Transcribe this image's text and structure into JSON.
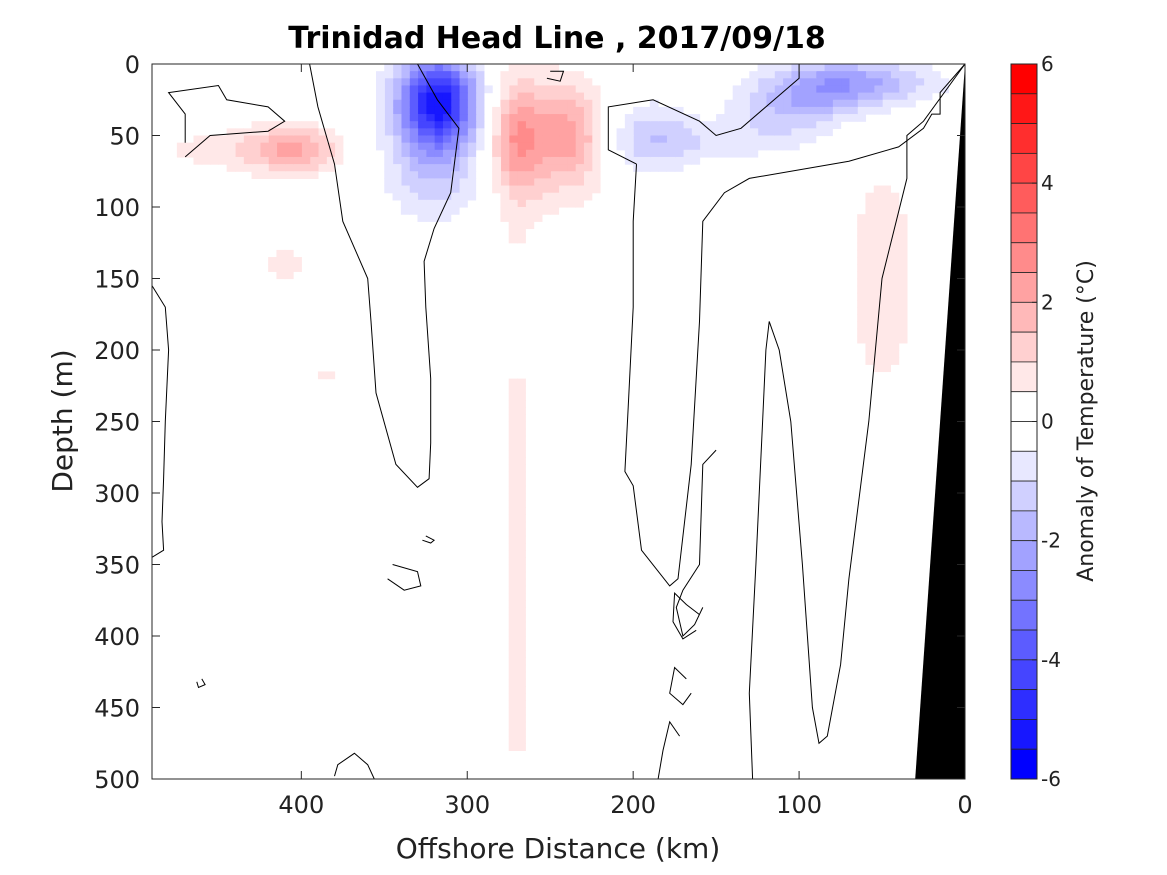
{
  "chart_data": {
    "type": "heatmap",
    "subtype": "filled-contour",
    "title": "Trinidad Head Line , 2017/09/18",
    "xlabel": "Offshore Distance (km)",
    "ylabel": "Depth (m)",
    "xlim": [
      490,
      0
    ],
    "ylim": [
      0,
      500
    ],
    "x_reversed": true,
    "y_reversed": true,
    "x_ticks": [
      "400",
      "300",
      "200",
      "100",
      "0"
    ],
    "x_tick_values": [
      400,
      300,
      200,
      100,
      0
    ],
    "y_ticks": [
      "0",
      "50",
      "100",
      "150",
      "200",
      "250",
      "300",
      "350",
      "400",
      "450",
      "500"
    ],
    "y_tick_values": [
      0,
      50,
      100,
      150,
      200,
      250,
      300,
      350,
      400,
      450,
      500
    ],
    "colorbar": {
      "label": "Anomaly of Temperature (°C)",
      "range": [
        -6,
        6
      ],
      "ticks": [
        "6",
        "4",
        "2",
        "0",
        "-2",
        "-4",
        "-6"
      ],
      "tick_values": [
        6,
        4,
        2,
        0,
        -2,
        -4,
        -6
      ],
      "level_step": 0.5,
      "colors": {
        "warm": [
          "#ffe8e8",
          "#ffd0d0",
          "#ffb9b9",
          "#ffa2a2",
          "#ff8b8b",
          "#ff7373",
          "#ff5c5c",
          "#ff4545",
          "#ff2e2e",
          "#ff1717",
          "#ff0000"
        ],
        "cold": [
          "#e8e8ff",
          "#d0d0ff",
          "#b9b9ff",
          "#a2a2ff",
          "#8b8bff",
          "#7373ff",
          "#5c5cff",
          "#4545ff",
          "#2e2eff",
          "#1717ff",
          "#0000ff"
        ]
      }
    },
    "anomaly_blobs": [
      {
        "x": 318,
        "y": 25,
        "sx": 17,
        "sy": 22,
        "amp": -5.0
      },
      {
        "x": 318,
        "y": 68,
        "sx": 22,
        "sy": 28,
        "amp": -1.6
      },
      {
        "x": 270,
        "y": 52,
        "sx": 12,
        "sy": 26,
        "amp": 1.7
      },
      {
        "x": 238,
        "y": 50,
        "sx": 13,
        "sy": 24,
        "amp": 1.5
      },
      {
        "x": 255,
        "y": 55,
        "sx": 30,
        "sy": 35,
        "amp": 0.9
      },
      {
        "x": 190,
        "y": 52,
        "sx": 18,
        "sy": 18,
        "amp": -1.4
      },
      {
        "x": 80,
        "y": 17,
        "sx": 30,
        "sy": 14,
        "amp": -2.0
      },
      {
        "x": 110,
        "y": 36,
        "sx": 22,
        "sy": 16,
        "amp": -1.0
      },
      {
        "x": 50,
        "y": 12,
        "sx": 30,
        "sy": 10,
        "amp": -0.9
      },
      {
        "x": 150,
        "y": 54,
        "sx": 25,
        "sy": 10,
        "amp": -0.7
      },
      {
        "x": 405,
        "y": 60,
        "sx": 18,
        "sy": 12,
        "amp": 1.7
      },
      {
        "x": 440,
        "y": 60,
        "sx": 45,
        "sy": 12,
        "amp": 0.7
      },
      {
        "x": 50,
        "y": 150,
        "sx": 17,
        "sy": 70,
        "amp": 0.8
      },
      {
        "x": 410,
        "y": 140,
        "sx": 11,
        "sy": 15,
        "amp": 0.7
      },
      {
        "x": 387,
        "y": 218,
        "sx": 8,
        "sy": 6,
        "amp": 0.6
      },
      {
        "x": 270,
        "y": 350,
        "sx": 9,
        "sy": 240,
        "amp": 0.6
      },
      {
        "x": 180,
        "y": 5,
        "sx": 18,
        "sy": 5,
        "amp": 0.5
      },
      {
        "x": 20,
        "y": 230,
        "sx": 5,
        "sy": 50,
        "amp": -0.6
      }
    ],
    "zero_contours": [
      [
        [
          490,
          155
        ],
        [
          482,
          170
        ],
        [
          480,
          200
        ],
        [
          482,
          250
        ],
        [
          483,
          290
        ],
        [
          484,
          320
        ],
        [
          483,
          340
        ],
        [
          490,
          345
        ]
      ],
      [
        [
          330,
          0
        ],
        [
          318,
          25
        ],
        [
          305,
          45
        ],
        [
          310,
          90
        ],
        [
          320,
          115
        ],
        [
          326,
          138
        ],
        [
          325,
          170
        ],
        [
          322,
          220
        ],
        [
          322,
          265
        ],
        [
          323,
          290
        ],
        [
          330,
          296
        ],
        [
          343,
          280
        ],
        [
          355,
          230
        ],
        [
          358,
          180
        ],
        [
          360,
          150
        ],
        [
          375,
          110
        ],
        [
          380,
          70
        ],
        [
          390,
          30
        ],
        [
          395,
          0
        ]
      ],
      [
        [
          250,
          5
        ],
        [
          242,
          5
        ],
        [
          244,
          12
        ],
        [
          252,
          10
        ]
      ],
      [
        [
          198,
          70
        ],
        [
          215,
          60
        ],
        [
          215,
          30
        ],
        [
          188,
          25
        ],
        [
          160,
          40
        ],
        [
          150,
          50
        ],
        [
          135,
          45
        ],
        [
          118,
          28
        ],
        [
          100,
          10
        ],
        [
          100,
          0
        ]
      ],
      [
        [
          198,
          70
        ],
        [
          200,
          110
        ],
        [
          200,
          170
        ],
        [
          203,
          240
        ],
        [
          205,
          285
        ],
        [
          200,
          295
        ],
        [
          195,
          340
        ],
        [
          178,
          365
        ],
        [
          173,
          360
        ],
        [
          165,
          280
        ],
        [
          160,
          180
        ],
        [
          158,
          110
        ],
        [
          145,
          90
        ],
        [
          130,
          80
        ],
        [
          70,
          68
        ],
        [
          40,
          58
        ],
        [
          25,
          45
        ],
        [
          20,
          35
        ],
        [
          15,
          35
        ],
        [
          15,
          20
        ],
        [
          0,
          0
        ]
      ],
      [
        [
          0,
          0
        ],
        [
          25,
          40
        ],
        [
          35,
          50
        ],
        [
          35,
          80
        ],
        [
          50,
          150
        ],
        [
          58,
          250
        ],
        [
          70,
          360
        ],
        [
          75,
          420
        ],
        [
          83,
          470
        ],
        [
          88,
          475
        ],
        [
          92,
          450
        ],
        [
          98,
          350
        ],
        [
          105,
          250
        ],
        [
          112,
          200
        ],
        [
          118,
          180
        ],
        [
          120,
          200
        ],
        [
          122,
          250
        ],
        [
          126,
          350
        ],
        [
          130,
          440
        ],
        [
          128,
          500
        ]
      ],
      [
        [
          150,
          270
        ],
        [
          158,
          280
        ],
        [
          160,
          350
        ],
        [
          170,
          368
        ],
        [
          174,
          380
        ],
        [
          170,
          400
        ],
        [
          163,
          392
        ],
        [
          158,
          380
        ]
      ],
      [
        [
          470,
          65
        ],
        [
          455,
          50
        ],
        [
          420,
          47
        ],
        [
          410,
          40
        ],
        [
          420,
          30
        ],
        [
          445,
          25
        ],
        [
          450,
          15
        ],
        [
          480,
          20
        ],
        [
          470,
          35
        ],
        [
          470,
          55
        ]
      ],
      [
        [
          460,
          430
        ],
        [
          458,
          434
        ],
        [
          462,
          436
        ],
        [
          463,
          432
        ]
      ],
      [
        [
          325,
          330
        ],
        [
          320,
          333
        ],
        [
          322,
          335
        ],
        [
          327,
          333
        ]
      ],
      [
        [
          345,
          350
        ],
        [
          330,
          355
        ],
        [
          328,
          365
        ],
        [
          338,
          368
        ],
        [
          348,
          360
        ]
      ],
      [
        [
          160,
          385
        ],
        [
          168,
          378
        ],
        [
          175,
          370
        ],
        [
          176,
          390
        ],
        [
          170,
          402
        ],
        [
          162,
          396
        ]
      ],
      [
        [
          168,
          430
        ],
        [
          175,
          422
        ],
        [
          178,
          440
        ],
        [
          170,
          448
        ],
        [
          165,
          440
        ]
      ],
      [
        [
          172,
          470
        ],
        [
          178,
          460
        ],
        [
          182,
          480
        ],
        [
          185,
          500
        ],
        [
          172,
          500
        ]
      ],
      [
        [
          380,
          498
        ],
        [
          378,
          490
        ],
        [
          368,
          482
        ],
        [
          360,
          490
        ],
        [
          356,
          500
        ]
      ]
    ],
    "bathymetry": [
      [
        0,
        0
      ],
      [
        0,
        500
      ],
      [
        30,
        500
      ]
    ]
  }
}
